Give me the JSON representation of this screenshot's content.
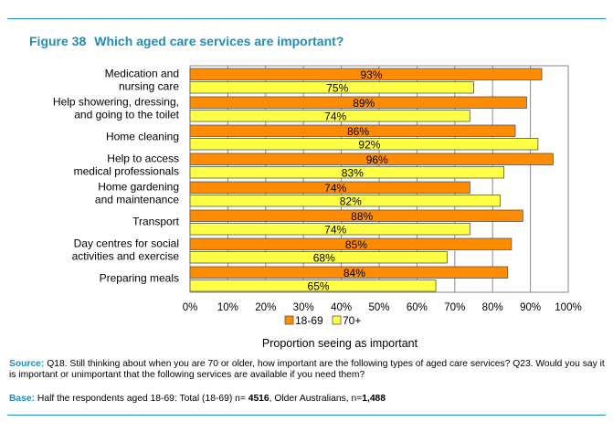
{
  "figure": {
    "number": "Figure 38",
    "title": "Which aged care services are important?"
  },
  "chart_data": {
    "type": "bar",
    "orientation": "horizontal",
    "categories": [
      [
        "Medication and",
        "nursing care"
      ],
      [
        "Help showering, dressing,",
        "and going to the toilet"
      ],
      [
        "Home cleaning"
      ],
      [
        "Help to access",
        "medical professionals"
      ],
      [
        "Home gardening",
        "and maintenance"
      ],
      [
        "Transport"
      ],
      [
        "Day centres for social",
        "activities and exercise"
      ],
      [
        "Preparing meals"
      ]
    ],
    "series": [
      {
        "name": "18-69",
        "color": "#ff8c00",
        "values": [
          93,
          89,
          86,
          96,
          74,
          88,
          85,
          84
        ]
      },
      {
        "name": "70+",
        "color": "#ffff44",
        "values": [
          75,
          74,
          92,
          83,
          82,
          74,
          68,
          65
        ]
      }
    ],
    "value_suffix": "%",
    "xlabel": "Proportion seeing as important",
    "xlim": [
      0,
      100
    ],
    "xticks": [
      "0%",
      "10%",
      "20%",
      "30%",
      "40%",
      "50%",
      "60%",
      "70%",
      "80%",
      "90%",
      "100%"
    ],
    "grid": true,
    "legend_position": "bottom"
  },
  "notes": {
    "source_label": "Source:",
    "source_text": "Q18. Still thinking about when you are 70 or older, how important are the following types of aged care services? Q23. Would you say it is important or unimportant that the following services are available if you need them?",
    "base_label": "Base:",
    "base_text_1": "Half the respondents aged 18-69: Total (18-69) n= ",
    "base_n1": "4516",
    "base_text_2": ", Older Australians, n=",
    "base_n2": "1,488"
  }
}
